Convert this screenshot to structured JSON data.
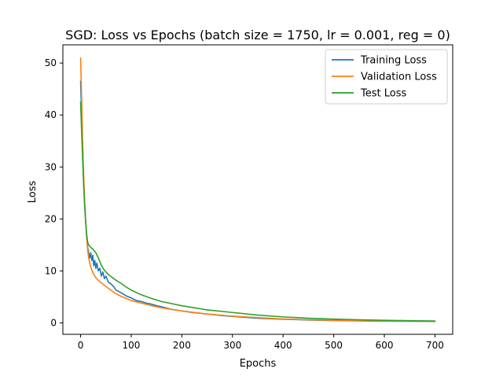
{
  "chart_data": {
    "type": "line",
    "title": "SGD: Loss vs Epochs (batch size = 1750, lr = 0.001, reg = 0)",
    "xlabel": "Epochs",
    "ylabel": "Loss",
    "xlim": [
      -35,
      735
    ],
    "ylim": [
      -2.2,
      53.5
    ],
    "xticks": [
      0,
      100,
      200,
      300,
      400,
      500,
      600,
      700
    ],
    "yticks": [
      0,
      10,
      20,
      30,
      40,
      50
    ],
    "grid": false,
    "legend": "top-right",
    "series": [
      {
        "name": "Training Loss",
        "color": "#1f77b4",
        "x": [
          0,
          2,
          4,
          6,
          8,
          10,
          12,
          14,
          16,
          18,
          20,
          22,
          24,
          26,
          28,
          30,
          32,
          35,
          38,
          41,
          44,
          47,
          50,
          55,
          60,
          65,
          70,
          80,
          90,
          100,
          110,
          120,
          130,
          140,
          150,
          160,
          180,
          200,
          220,
          250,
          280,
          300,
          350,
          400,
          450,
          500,
          550,
          600,
          650,
          700
        ],
        "y": [
          46.5,
          40.0,
          33.0,
          27.5,
          23.0,
          19.5,
          16.5,
          14.5,
          13.5,
          12.5,
          13.5,
          12.0,
          13.0,
          11.0,
          12.0,
          10.5,
          11.5,
          10.0,
          10.5,
          9.0,
          9.8,
          8.5,
          9.0,
          7.8,
          7.5,
          7.0,
          6.3,
          5.8,
          5.2,
          4.8,
          4.3,
          4.1,
          3.8,
          3.6,
          3.3,
          3.1,
          2.6,
          2.3,
          2.0,
          1.7,
          1.4,
          1.25,
          0.9,
          0.7,
          0.55,
          0.45,
          0.38,
          0.33,
          0.3,
          0.28
        ]
      },
      {
        "name": "Validation Loss",
        "color": "#ff7f0e",
        "x": [
          0,
          2,
          4,
          6,
          8,
          10,
          12,
          14,
          16,
          18,
          20,
          22,
          25,
          28,
          31,
          35,
          40,
          45,
          50,
          60,
          70,
          80,
          90,
          100,
          120,
          140,
          160,
          180,
          200,
          250,
          300,
          350,
          400,
          450,
          500,
          550,
          600,
          650,
          700
        ],
        "y": [
          51.0,
          43.5,
          35.0,
          28.5,
          23.5,
          19.5,
          16.5,
          14.0,
          12.5,
          11.5,
          10.8,
          10.2,
          9.5,
          9.0,
          8.6,
          8.2,
          7.8,
          7.4,
          7.0,
          6.3,
          5.6,
          5.1,
          4.7,
          4.3,
          3.8,
          3.3,
          2.9,
          2.6,
          2.3,
          1.7,
          1.3,
          1.0,
          0.75,
          0.6,
          0.5,
          0.42,
          0.36,
          0.32,
          0.3
        ]
      },
      {
        "name": "Test Loss",
        "color": "#2ca02c",
        "x": [
          0,
          2,
          4,
          6,
          8,
          10,
          12,
          14,
          16,
          18,
          20,
          23,
          26,
          30,
          35,
          40,
          45,
          50,
          55,
          60,
          70,
          80,
          90,
          100,
          120,
          140,
          160,
          180,
          200,
          250,
          300,
          350,
          400,
          450,
          500,
          550,
          600,
          650,
          700
        ],
        "y": [
          42.5,
          37.0,
          31.5,
          26.5,
          22.5,
          19.5,
          17.0,
          15.5,
          15.0,
          14.8,
          14.5,
          14.3,
          14.0,
          13.5,
          12.5,
          11.3,
          10.4,
          9.8,
          9.3,
          8.9,
          8.2,
          7.6,
          6.9,
          6.3,
          5.4,
          4.7,
          4.1,
          3.7,
          3.3,
          2.5,
          2.0,
          1.5,
          1.15,
          0.9,
          0.72,
          0.6,
          0.5,
          0.42,
          0.37
        ]
      }
    ]
  }
}
